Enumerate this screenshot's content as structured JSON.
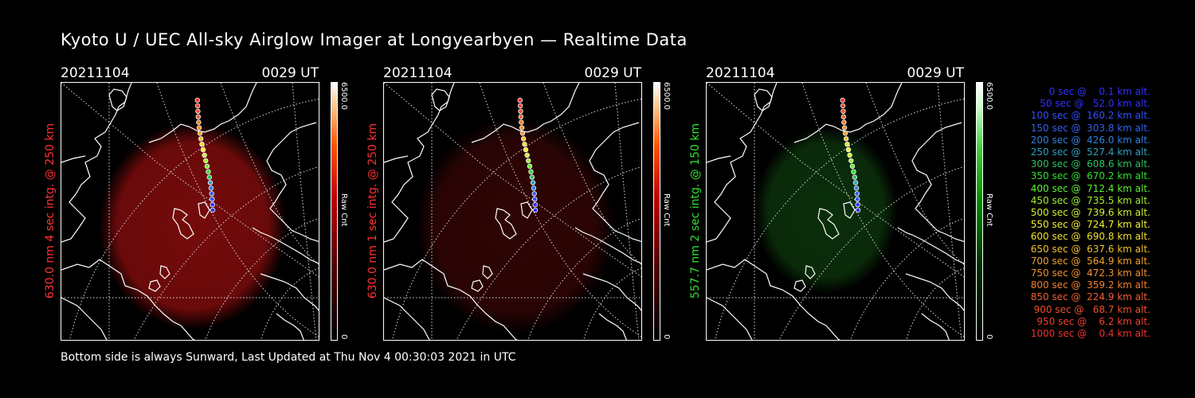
{
  "title": "Kyoto U / UEC All-sky Airglow Imager at Longyearbyen — Realtime Data",
  "footer": "Bottom side is always Sunward, Last Updated at Thu Nov  4 00:30:03 2021 in UTC",
  "panels": [
    {
      "date": "20211104",
      "time": "0029 UT",
      "side_label": "630.0 nm 4 sec intg. @ 250 km",
      "side_color": "#ff3030",
      "glow": "#8a0d0d",
      "glow_opacity": 0.85,
      "colorbar": {
        "max": "6500.0",
        "unit": "Raw Cnt",
        "min": "0"
      }
    },
    {
      "date": "20211104",
      "time": "0029 UT",
      "side_label": "630.0 nm 1 sec intg. @ 250 km",
      "side_color": "#ff3030",
      "glow": "#3a0606",
      "glow_opacity": 0.8,
      "colorbar": {
        "max": "6500.0",
        "unit": "Raw Cnt",
        "min": "0"
      }
    },
    {
      "date": "20211104",
      "time": "0029 UT",
      "side_label": "557.7 nm 2 sec intg. @ 150 km",
      "side_color": "#30e030",
      "glow": "#0d3a0d",
      "glow_opacity": 0.8,
      "colorbar": {
        "max": "6500.0",
        "unit": "Raw Cnt",
        "min": "0"
      }
    }
  ],
  "legend": [
    {
      "text": "   0 sec @    0.1 km alt.",
      "color": "#3030ff"
    },
    {
      "text": "  50 sec @   52.0 km alt.",
      "color": "#3030ff"
    },
    {
      "text": " 100 sec @  160.2 km alt.",
      "color": "#3050ff"
    },
    {
      "text": " 150 sec @  303.8 km alt.",
      "color": "#3060f0"
    },
    {
      "text": " 200 sec @  426.0 km alt.",
      "color": "#3080e0"
    },
    {
      "text": " 250 sec @  527.4 km alt.",
      "color": "#30a0c0"
    },
    {
      "text": " 300 sec @  608.6 km alt.",
      "color": "#30c060"
    },
    {
      "text": " 350 sec @  670.2 km alt.",
      "color": "#30e030"
    },
    {
      "text": " 400 sec @  712.4 km alt.",
      "color": "#60f030"
    },
    {
      "text": " 450 sec @  735.5 km alt.",
      "color": "#a0f030"
    },
    {
      "text": " 500 sec @  739.6 km alt.",
      "color": "#d0f030"
    },
    {
      "text": " 550 sec @  724.7 km alt.",
      "color": "#f0f030"
    },
    {
      "text": " 600 sec @  690.8 km alt.",
      "color": "#f0e030"
    },
    {
      "text": " 650 sec @  637.6 km alt.",
      "color": "#f0c030"
    },
    {
      "text": " 700 sec @  564.9 km alt.",
      "color": "#f0a030"
    },
    {
      "text": " 750 sec @  472.3 km alt.",
      "color": "#f09030"
    },
    {
      "text": " 800 sec @  359.2 km alt.",
      "color": "#f08030"
    },
    {
      "text": " 850 sec @  224.9 km alt.",
      "color": "#f06030"
    },
    {
      "text": " 900 sec @   68.7 km alt.",
      "color": "#f05030"
    },
    {
      "text": " 950 sec @    6.2 km alt.",
      "color": "#f04030"
    },
    {
      "text": "1000 sec @    0.4 km alt.",
      "color": "#f03030"
    }
  ]
}
